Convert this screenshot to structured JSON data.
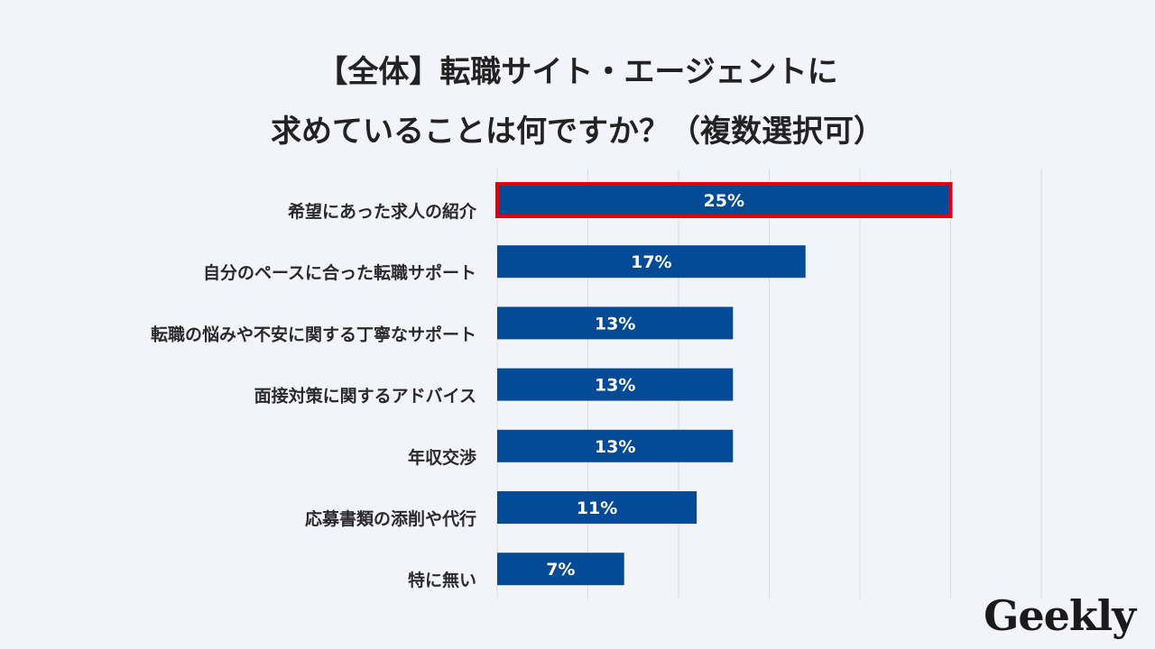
{
  "title": {
    "line1": "【全体】転職サイト・エージェントに",
    "line2": "求めていることは何ですか？（複数選択可）"
  },
  "chart_data": {
    "type": "bar",
    "orientation": "horizontal",
    "categories": [
      "希望にあった求人の紹介",
      "自分のペースに合った転職サポート",
      "転職の悩みや不安に関する丁寧なサポート",
      "面接対策に関するアドバイス",
      "年収交渉",
      "応募書類の添削や代行",
      "特に無い"
    ],
    "values": [
      25,
      17,
      13,
      13,
      13,
      11,
      7
    ],
    "value_labels": [
      "25%",
      "17%",
      "13%",
      "13%",
      "13%",
      "11%",
      "7%"
    ],
    "xlim": [
      0,
      30
    ],
    "grid": true,
    "highlight_index": 0,
    "colors": {
      "bar": "#034b96",
      "highlight_border": "#e10012",
      "grid": "#d8dbe2"
    }
  },
  "logo": "Geekly"
}
